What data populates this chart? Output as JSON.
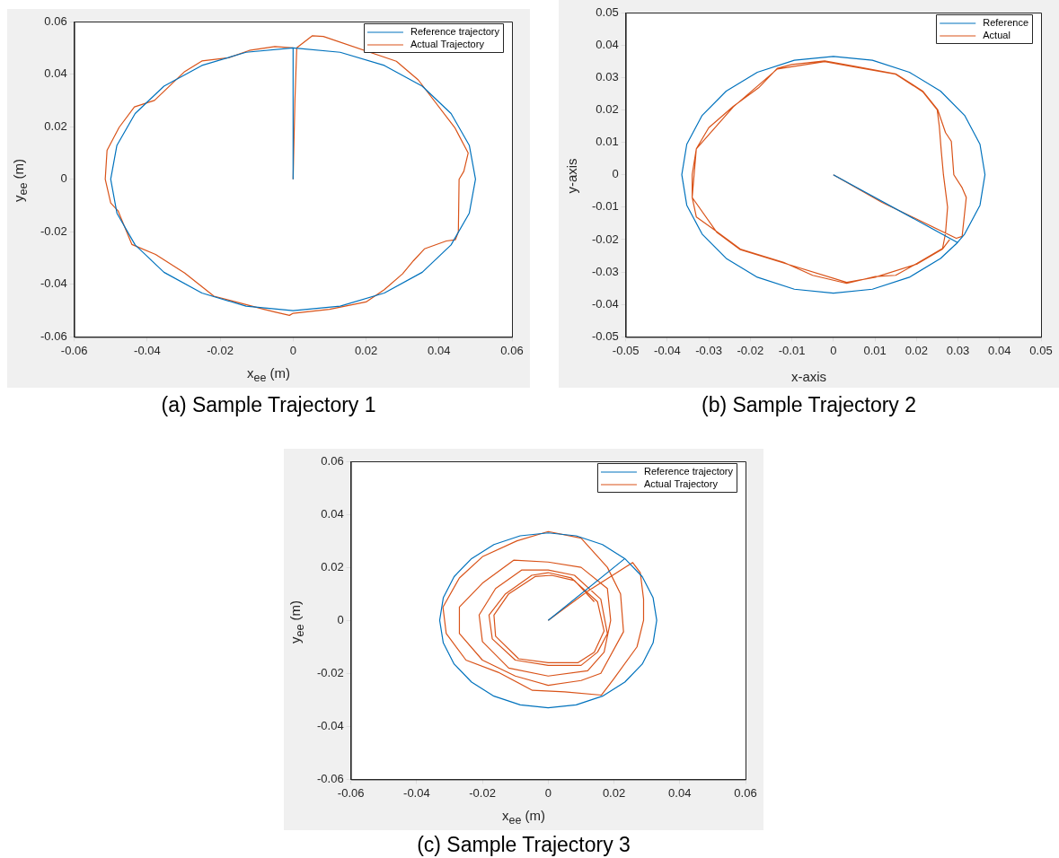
{
  "chart_data": [
    {
      "type": "line",
      "title": "(a) Sample Trajectory 1",
      "xlabel": "x$_{ee}$ (m)",
      "ylabel": "y$_{ee}$ (m)",
      "xlim": [
        -0.06,
        0.06
      ],
      "ylim": [
        -0.06,
        0.06
      ],
      "xticks": [
        -0.06,
        -0.04,
        -0.02,
        0,
        0.02,
        0.04,
        0.06
      ],
      "yticks": [
        -0.06,
        -0.04,
        -0.02,
        0,
        0.02,
        0.04,
        0.06
      ],
      "legend": "top right",
      "grid": false,
      "series": [
        {
          "name": "Reference trajectory",
          "color": "#0072bd",
          "x": [
            0,
            0,
            0.0129,
            0.025,
            0.0354,
            0.0433,
            0.0483,
            0.05,
            0.0483,
            0.0433,
            0.0354,
            0.025,
            0.0129,
            0,
            -0.0129,
            -0.025,
            -0.0354,
            -0.0433,
            -0.0483,
            -0.05,
            -0.0483,
            -0.0433,
            -0.0354,
            -0.025,
            -0.0129,
            0
          ],
          "values": [
            0,
            0.05,
            0.0483,
            0.0433,
            0.0354,
            0.025,
            0.0129,
            0,
            -0.0129,
            -0.025,
            -0.0354,
            -0.0433,
            -0.0483,
            -0.05,
            -0.0483,
            -0.0433,
            -0.0354,
            -0.025,
            -0.0129,
            0,
            0.0129,
            0.025,
            0.0354,
            0.0433,
            0.0483,
            0.05
          ]
        },
        {
          "name": "Actual Trajectory",
          "color": "#d95319",
          "x": [
            0,
            0.0005,
            0.001,
            0.0053,
            0.0083,
            0.0283,
            0.0343,
            0.0443,
            0.048,
            0.0468,
            0.0455,
            0.0453,
            0.0445,
            0.042,
            0.036,
            0.033,
            0.03,
            0.025,
            0.02,
            0.01,
            0,
            -0.001,
            -0.005,
            -0.008,
            -0.0157,
            -0.0217,
            -0.0297,
            -0.0377,
            -0.0442,
            -0.048,
            -0.05,
            -0.0515,
            -0.051,
            -0.0477,
            -0.0435,
            -0.038,
            -0.0297,
            -0.025,
            -0.0177,
            -0.012,
            -0.005,
            0
          ],
          "values": [
            0,
            0.03,
            0.05,
            0.0546,
            0.0543,
            0.0449,
            0.0378,
            0.0197,
            0.01,
            0.003,
            0,
            -0.02,
            -0.023,
            -0.0235,
            -0.0265,
            -0.031,
            -0.036,
            -0.042,
            -0.0467,
            -0.0495,
            -0.051,
            -0.0518,
            -0.0505,
            -0.0495,
            -0.0467,
            -0.0445,
            -0.0357,
            -0.0286,
            -0.0248,
            -0.012,
            -0.009,
            0,
            0.011,
            0.0197,
            0.0275,
            0.03,
            0.041,
            0.045,
            0.0462,
            0.049,
            0.0505,
            0.05
          ]
        }
      ]
    },
    {
      "type": "line",
      "title": "(b) Sample Trajectory 2",
      "xlabel": "x-axis",
      "ylabel": "y-axis",
      "xlim": [
        -0.05,
        0.05
      ],
      "ylim": [
        -0.05,
        0.05
      ],
      "xticks": [
        -0.05,
        -0.04,
        -0.03,
        -0.02,
        -0.01,
        0,
        0.01,
        0.02,
        0.03,
        0.04,
        0.05
      ],
      "yticks": [
        -0.05,
        -0.04,
        -0.03,
        -0.02,
        -0.01,
        0,
        0.01,
        0.02,
        0.03,
        0.04,
        0.05
      ],
      "legend": "top right",
      "grid": false,
      "series": [
        {
          "name": "Reference",
          "color": "#0072bd",
          "x": [
            0,
            0.0299,
            0.0316,
            0.0353,
            0.0365,
            0.0353,
            0.0316,
            0.0258,
            0.0183,
            0.0094,
            0,
            -0.0094,
            -0.0183,
            -0.0258,
            -0.0316,
            -0.0353,
            -0.0365,
            -0.0353,
            -0.0316,
            -0.0258,
            -0.0183,
            -0.0094,
            0,
            0.0094,
            0.0183,
            0.0258,
            0.0299
          ],
          "values": [
            0,
            -0.0209,
            -0.0183,
            -0.0094,
            0,
            0.0094,
            0.0183,
            0.0258,
            0.0316,
            0.0353,
            0.0365,
            0.0353,
            0.0316,
            0.0258,
            0.0183,
            0.0094,
            0,
            -0.0094,
            -0.0183,
            -0.0258,
            -0.0316,
            -0.0353,
            -0.0365,
            -0.0353,
            -0.0316,
            -0.0258,
            -0.0209
          ]
        },
        {
          "name": "Actual",
          "color": "#d95319",
          "x": [
            0,
            0.0117,
            0.0296,
            0.031,
            0.032,
            0.031,
            0.029,
            0.0284,
            0.027,
            0.0251,
            0.0215,
            0.015,
            0.0048,
            -0.0021,
            -0.01,
            -0.0135,
            -0.018,
            -0.0241,
            -0.03,
            -0.033,
            -0.034,
            -0.034,
            -0.033,
            -0.0281,
            -0.0224,
            -0.012,
            -0.005,
            0.0032,
            0.0101,
            0.015,
            0.0202,
            0.0263,
            0.027,
            0.0275,
            0.0265,
            0.026,
            0.0255,
            0.025,
            0.0215,
            0.015,
            0.0048,
            -0.0021,
            -0.0135,
            -0.0241,
            -0.033,
            -0.034,
            -0.0281,
            -0.0224,
            -0.012,
            0.0032,
            0.0101,
            0.0202,
            0.0263,
            0.028
          ],
          "values": [
            0,
            -0.0085,
            -0.0196,
            -0.019,
            -0.007,
            -0.004,
            0,
            0.0103,
            0.013,
            0.0201,
            0.0258,
            0.0311,
            0.0335,
            0.0351,
            0.034,
            0.0328,
            0.0268,
            0.0211,
            0.0145,
            0.008,
            0,
            -0.007,
            -0.013,
            -0.0175,
            -0.0229,
            -0.027,
            -0.031,
            -0.0335,
            -0.0314,
            -0.031,
            -0.0273,
            -0.0227,
            -0.018,
            -0.01,
            0,
            0.007,
            0.015,
            0.02,
            0.0256,
            0.031,
            0.0333,
            0.0349,
            0.0326,
            0.0209,
            0.008,
            -0.007,
            -0.0177,
            -0.0231,
            -0.0272,
            -0.0332,
            -0.0316,
            -0.0275,
            -0.0229,
            -0.02
          ]
        }
      ]
    },
    {
      "type": "line",
      "title": "(c) Sample Trajectory 3",
      "xlabel": "x$_{ee}$ (m)",
      "ylabel": "y$_{ee}$ (m)",
      "xlim": [
        -0.06,
        0.06
      ],
      "ylim": [
        -0.06,
        0.06
      ],
      "xticks": [
        -0.06,
        -0.04,
        -0.02,
        0,
        0.02,
        0.04,
        0.06
      ],
      "yticks": [
        -0.06,
        -0.04,
        -0.02,
        0,
        0.02,
        0.04,
        0.06
      ],
      "legend": "top right",
      "grid": false,
      "series": [
        {
          "name": "Reference trajectory",
          "color": "#0072bd",
          "x": [
            0,
            0.0233,
            0.0165,
            0.0085,
            0,
            -0.0085,
            -0.0165,
            -0.0233,
            -0.0286,
            -0.0319,
            -0.033,
            -0.0319,
            -0.0286,
            -0.0233,
            -0.0165,
            -0.0085,
            0,
            0.0085,
            0.0165,
            0.0233,
            0.0286,
            0.0319,
            0.033,
            0.0319,
            0.0286,
            0.0233
          ],
          "values": [
            0,
            0.0233,
            0.0286,
            0.0319,
            0.033,
            0.0319,
            0.0286,
            0.0233,
            0.0165,
            0.0085,
            0,
            -0.0085,
            -0.0165,
            -0.0233,
            -0.0286,
            -0.0319,
            -0.033,
            -0.0319,
            -0.0286,
            -0.0233,
            -0.0165,
            -0.0085,
            0,
            0.0085,
            0.0165,
            0.0233
          ]
        },
        {
          "name": "Actual Trajectory",
          "color": "#d95319",
          "x": [
            0,
            0.012,
            0.0257,
            0.028,
            0.029,
            0.029,
            0.027,
            0.02,
            0.0162,
            0.005,
            -0.0048,
            -0.0152,
            -0.025,
            -0.031,
            -0.032,
            -0.027,
            -0.02,
            -0.0095,
            0,
            0.01,
            0.018,
            0.022,
            0.0229,
            0.016,
            0.01,
            0,
            -0.01,
            -0.02,
            -0.027,
            -0.027,
            -0.02,
            -0.0105,
            0,
            0.01,
            0.018,
            0.019,
            0.017,
            0.012,
            0,
            -0.012,
            -0.02,
            -0.021,
            -0.016,
            -0.008,
            0,
            0.008,
            0.016,
            0.018,
            0.015,
            0.01,
            0,
            -0.01,
            -0.017,
            -0.018,
            -0.013,
            -0.005,
            0,
            0.007,
            0.015,
            0.017,
            0.014,
            0.009,
            0,
            -0.009,
            -0.016,
            -0.0165,
            -0.012,
            -0.004,
            0.001,
            0.008,
            0.014
          ],
          "values": [
            0,
            0.011,
            0.0218,
            0.018,
            0.008,
            0,
            -0.01,
            -0.022,
            -0.0282,
            -0.027,
            -0.0264,
            -0.0196,
            -0.015,
            -0.005,
            0.005,
            0.016,
            0.024,
            0.03,
            0.0335,
            0.031,
            0.02,
            0.01,
            -0.0043,
            -0.02,
            -0.0227,
            -0.0245,
            -0.021,
            -0.015,
            -0.005,
            0.005,
            0.014,
            0.0227,
            0.022,
            0.02,
            0.012,
            0,
            -0.012,
            -0.019,
            -0.021,
            -0.018,
            -0.008,
            0.002,
            0.012,
            0.019,
            0.019,
            0.017,
            0.008,
            -0.005,
            -0.012,
            -0.017,
            -0.017,
            -0.015,
            -0.007,
            0.002,
            0.01,
            0.017,
            0.018,
            0.016,
            0.007,
            -0.004,
            -0.012,
            -0.016,
            -0.016,
            -0.0145,
            -0.006,
            0.002,
            0.01,
            0.0165,
            0.017,
            0.015,
            0.007
          ]
        }
      ]
    }
  ]
}
